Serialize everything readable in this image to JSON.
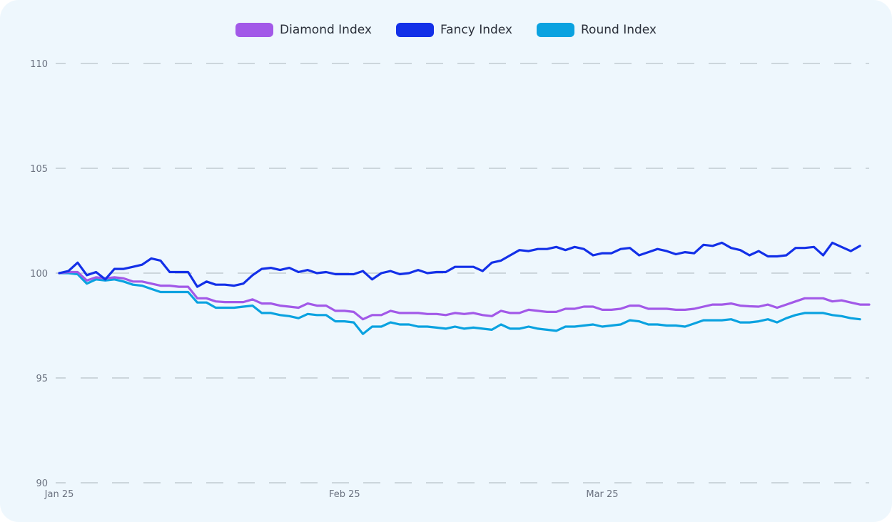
{
  "chart_data": {
    "type": "line",
    "title": "",
    "xlabel": "",
    "ylabel": "",
    "ylim": [
      90,
      110
    ],
    "yticks": [
      90,
      95,
      100,
      105,
      110
    ],
    "xticks": [
      {
        "label": "Jan 25",
        "x": 0
      },
      {
        "label": "Feb 25",
        "x": 31
      },
      {
        "label": "Mar 25",
        "x": 59
      }
    ],
    "grid": true,
    "legend_position": "top-center",
    "x_start_label": "Jan 25",
    "series": [
      {
        "name": "Diamond Index",
        "color": "#a259e8",
        "values": [
          100,
          100.05,
          100.05,
          99.65,
          99.8,
          99.75,
          99.8,
          99.75,
          99.6,
          99.6,
          99.5,
          99.4,
          99.4,
          99.35,
          99.35,
          98.8,
          98.8,
          98.65,
          98.62,
          98.62,
          98.62,
          98.75,
          98.55,
          98.55,
          98.45,
          98.4,
          98.35,
          98.55,
          98.45,
          98.45,
          98.2,
          98.2,
          98.15,
          97.8,
          98,
          98,
          98.2,
          98.1,
          98.1,
          98.1,
          98.05,
          98.05,
          98,
          98.1,
          98.05,
          98.1,
          98,
          97.95,
          98.2,
          98.1,
          98.1,
          98.25,
          98.2,
          98.15,
          98.15,
          98.3,
          98.3,
          98.4,
          98.4,
          98.25,
          98.25,
          98.3,
          98.45,
          98.45,
          98.3,
          98.3,
          98.3,
          98.25,
          98.25,
          98.3,
          98.4,
          98.5,
          98.5,
          98.55,
          98.45,
          98.42,
          98.4,
          98.5,
          98.35,
          98.5,
          98.65,
          98.8,
          98.8,
          98.8,
          98.65,
          98.7,
          98.6,
          98.5,
          98.5
        ]
      },
      {
        "name": "Fancy Index",
        "color": "#1330e8",
        "values": [
          100,
          100.1,
          100.5,
          99.9,
          100.05,
          99.7,
          100.2,
          100.2,
          100.3,
          100.4,
          100.7,
          100.6,
          100.05,
          100.05,
          100.05,
          99.35,
          99.6,
          99.45,
          99.45,
          99.4,
          99.5,
          99.9,
          100.2,
          100.25,
          100.15,
          100.25,
          100.05,
          100.15,
          100,
          100.05,
          99.95,
          99.95,
          99.95,
          100.1,
          99.7,
          100,
          100.1,
          99.95,
          100,
          100.15,
          100,
          100.05,
          100.05,
          100.3,
          100.3,
          100.3,
          100.1,
          100.5,
          100.6,
          100.85,
          101.1,
          101.05,
          101.15,
          101.15,
          101.25,
          101.1,
          101.25,
          101.15,
          100.85,
          100.95,
          100.95,
          101.15,
          101.2,
          100.85,
          101,
          101.15,
          101.05,
          100.9,
          101,
          100.95,
          101.35,
          101.3,
          101.45,
          101.2,
          101.1,
          100.85,
          101.05,
          100.8,
          100.8,
          100.85,
          101.2,
          101.2,
          101.25,
          100.85,
          101.45,
          101.25,
          101.05,
          101.3
        ]
      },
      {
        "name": "Round Index",
        "color": "#0aa2e0",
        "values": [
          100,
          100,
          99.95,
          99.5,
          99.7,
          99.65,
          99.7,
          99.6,
          99.45,
          99.4,
          99.25,
          99.1,
          99.1,
          99.1,
          99.1,
          98.6,
          98.6,
          98.35,
          98.35,
          98.35,
          98.4,
          98.45,
          98.1,
          98.1,
          98,
          97.95,
          97.85,
          98.05,
          98,
          98,
          97.7,
          97.7,
          97.65,
          97.1,
          97.45,
          97.45,
          97.65,
          97.55,
          97.55,
          97.45,
          97.45,
          97.4,
          97.35,
          97.45,
          97.35,
          97.4,
          97.35,
          97.3,
          97.55,
          97.35,
          97.35,
          97.45,
          97.35,
          97.3,
          97.25,
          97.45,
          97.45,
          97.5,
          97.55,
          97.45,
          97.5,
          97.55,
          97.75,
          97.7,
          97.55,
          97.55,
          97.5,
          97.5,
          97.45,
          97.6,
          97.75,
          97.75,
          97.75,
          97.8,
          97.65,
          97.65,
          97.7,
          97.8,
          97.65,
          97.85,
          98,
          98.1,
          98.1,
          98.1,
          98,
          97.95,
          97.85,
          97.8
        ]
      }
    ]
  }
}
